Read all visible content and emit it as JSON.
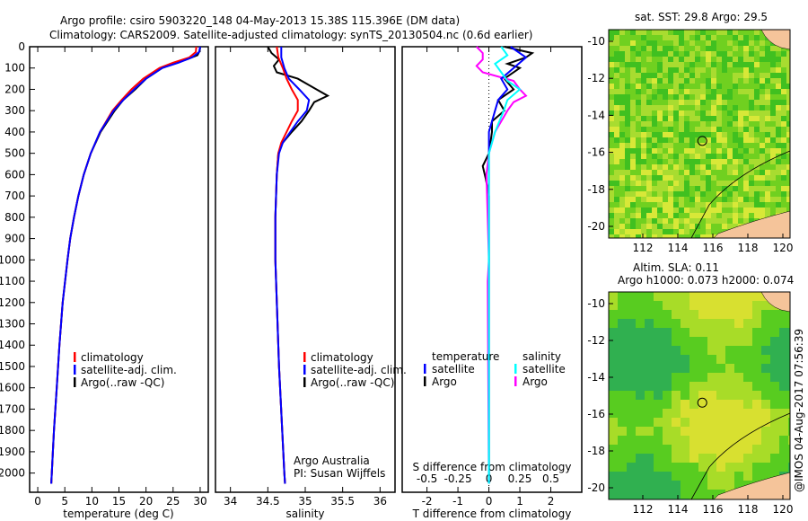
{
  "title_line1": "Argo profile: csiro 5903220_148 04-May-2013 15.38S 115.396E (DM data)",
  "title_line2": "Climatology: CARS2009. Satellite-adjusted climatology: synTS_20130504.nc (0.6d earlier)",
  "credit": "@IMOS 04-Aug-2017 07:56:39",
  "colors": {
    "climatology": "#ff0000",
    "satellite": "#0000ff",
    "argo": "#000000",
    "sal_satellite": "#00ffff",
    "sal_argo": "#ff00ff",
    "land": "#f5c49a"
  },
  "chart_data": [
    {
      "type": "line",
      "name": "temperature",
      "xlabel": "temperature (deg C)",
      "ylabel": "depth",
      "xlim": [
        -1.5,
        31.5
      ],
      "ylim": [
        0,
        2090
      ],
      "xticks": [
        0,
        5,
        10,
        15,
        20,
        25,
        30
      ],
      "yticks": [
        0,
        100,
        200,
        300,
        400,
        500,
        600,
        700,
        800,
        900,
        1000,
        1100,
        1200,
        1300,
        1400,
        1500,
        1600,
        1700,
        1800,
        1900,
        2000
      ],
      "legend": [
        "climatology",
        "satellite-adj. clim.",
        "Argo(..raw -QC)"
      ],
      "series": [
        {
          "name": "climatology",
          "depth": [
            0,
            25,
            50,
            75,
            100,
            150,
            200,
            250,
            300,
            400,
            500,
            600,
            700,
            800,
            900,
            1000,
            1200,
            1400,
            1600,
            1800,
            2000,
            2050
          ],
          "values": [
            29.3,
            29.2,
            28,
            25,
            22.5,
            19.5,
            17.3,
            15.5,
            13.8,
            11.5,
            9.8,
            8.5,
            7.5,
            6.7,
            6,
            5.5,
            4.6,
            4,
            3.5,
            3,
            2.6,
            2.5
          ]
        },
        {
          "name": "satellite-adj. clim.",
          "depth": [
            0,
            25,
            50,
            75,
            100,
            150,
            200,
            250,
            300,
            400,
            500,
            600,
            700,
            800,
            900,
            1000,
            1200,
            1400,
            1600,
            1800,
            2000,
            2050
          ],
          "values": [
            30,
            29.8,
            28.5,
            26,
            23,
            20,
            17.8,
            15.8,
            14,
            11.5,
            9.8,
            8.5,
            7.5,
            6.7,
            6,
            5.5,
            4.6,
            4,
            3.5,
            3,
            2.6,
            2.5
          ]
        },
        {
          "name": "Argo(..raw -QC)",
          "depth": [
            0,
            20,
            40,
            60,
            80,
            100,
            150,
            200,
            250,
            300,
            400,
            500,
            600,
            700,
            800,
            900,
            1000,
            1200,
            1400,
            1600,
            1800,
            2000,
            2050
          ],
          "values": [
            30,
            29.9,
            29.5,
            27.5,
            25,
            23,
            20,
            18,
            15.8,
            14.2,
            11.6,
            9.8,
            8.5,
            7.5,
            6.7,
            6,
            5.5,
            4.6,
            4,
            3.5,
            3,
            2.6,
            2.5
          ]
        }
      ]
    },
    {
      "type": "line",
      "name": "salinity",
      "xlabel": "salinity",
      "xlim": [
        33.8,
        36.2
      ],
      "ylim": [
        0,
        2090
      ],
      "xticks": [
        34,
        34.5,
        35,
        35.5,
        36
      ],
      "legend": [
        "climatology",
        "satellite-adj. clim.",
        "Argo(..raw -QC)"
      ],
      "annotation": [
        "Argo Australia",
        "PI: Susan Wijffels"
      ],
      "series": [
        {
          "name": "climatology",
          "depth": [
            0,
            50,
            100,
            150,
            200,
            250,
            300,
            350,
            400,
            450,
            500,
            600,
            800,
            1000,
            1500,
            2000,
            2050
          ],
          "values": [
            34.62,
            34.64,
            34.7,
            34.75,
            34.82,
            34.9,
            34.9,
            34.82,
            34.75,
            34.68,
            34.64,
            34.62,
            34.6,
            34.6,
            34.65,
            34.72,
            34.73
          ]
        },
        {
          "name": "satellite-adj. clim.",
          "depth": [
            0,
            50,
            100,
            150,
            200,
            250,
            300,
            350,
            400,
            450,
            500,
            600,
            800,
            1000,
            1500,
            2000,
            2050
          ],
          "values": [
            34.68,
            34.68,
            34.72,
            34.78,
            34.92,
            35.05,
            35.02,
            34.9,
            34.8,
            34.7,
            34.65,
            34.62,
            34.6,
            34.6,
            34.65,
            34.72,
            34.73
          ]
        },
        {
          "name": "Argo(..raw -QC)",
          "depth": [
            0,
            30,
            60,
            90,
            120,
            150,
            180,
            200,
            230,
            260,
            300,
            350,
            400,
            450,
            500,
            600,
            800,
            1000,
            1500,
            2000,
            2050
          ],
          "values": [
            34.5,
            34.55,
            34.65,
            34.58,
            34.62,
            34.9,
            35.05,
            35.15,
            35.3,
            35.12,
            35.05,
            34.95,
            34.82,
            34.7,
            34.64,
            34.62,
            34.6,
            34.6,
            34.65,
            34.72,
            34.73
          ]
        }
      ]
    },
    {
      "type": "line",
      "name": "difference",
      "xlabel": "T difference from climatology",
      "x2label": "S difference from climatology",
      "xlim": [
        -2.8,
        3
      ],
      "xticks": [
        -2,
        -1,
        0,
        1,
        2
      ],
      "x2ticks": [
        -0.5,
        -0.25,
        0,
        0.25,
        0.5
      ],
      "legend_temperature": [
        "temperature",
        "satellite",
        "Argo"
      ],
      "legend_salinity": [
        "salinity",
        "satellite",
        "Argo"
      ],
      "series": [
        {
          "name": "T satellite",
          "depth": [
            0,
            50,
            100,
            150,
            200,
            250,
            300,
            400,
            500,
            700,
            1000,
            2050
          ],
          "values": [
            0.7,
            1.2,
            0.8,
            0.4,
            0.6,
            0.3,
            0.2,
            0,
            0,
            0,
            0,
            0
          ]
        },
        {
          "name": "T Argo",
          "depth": [
            0,
            30,
            50,
            80,
            100,
            150,
            200,
            250,
            300,
            350,
            400,
            500,
            560,
            620,
            700,
            1000,
            2050
          ],
          "values": [
            0.5,
            1.4,
            1.2,
            0.6,
            1.0,
            0.5,
            0.8,
            0.3,
            0.5,
            0.1,
            0.1,
            0,
            -0.2,
            -0.1,
            0,
            0,
            0
          ]
        },
        {
          "name": "S satellite",
          "depth": [
            0,
            40,
            80,
            120,
            160,
            200,
            250,
            300,
            400,
            500,
            700,
            1000,
            2050
          ],
          "values": [
            0.1,
            0.15,
            0.05,
            0.1,
            0.15,
            0.25,
            0.15,
            0.12,
            0.05,
            0,
            0,
            0,
            0
          ]
        },
        {
          "name": "S Argo",
          "depth": [
            0,
            30,
            60,
            90,
            120,
            160,
            200,
            230,
            260,
            300,
            400,
            500,
            600,
            1000,
            1100,
            2050
          ],
          "values": [
            -0.1,
            -0.05,
            -0.05,
            -0.1,
            -0.05,
            0.2,
            0.25,
            0.3,
            0.2,
            0.15,
            0.05,
            0,
            -0.02,
            0,
            -0.01,
            0
          ]
        }
      ]
    }
  ],
  "map_sst": {
    "label": "sat. SST: 29.8 Argo: 29.5",
    "xticks": [
      112,
      114,
      116,
      118,
      120
    ],
    "yticks": [
      -10,
      -12,
      -14,
      -16,
      -18,
      -20
    ],
    "argo_lon": 115.396,
    "argo_lat": -15.38
  },
  "map_sla": {
    "label1": "Altim. SLA: 0.11",
    "label2": "Argo h1000: 0.073 h2000: 0.074",
    "xticks": [
      112,
      114,
      116,
      118,
      120
    ],
    "yticks": [
      -10,
      -12,
      -14,
      -16,
      -18,
      -20
    ],
    "argo_lon": 115.396,
    "argo_lat": -15.38
  }
}
